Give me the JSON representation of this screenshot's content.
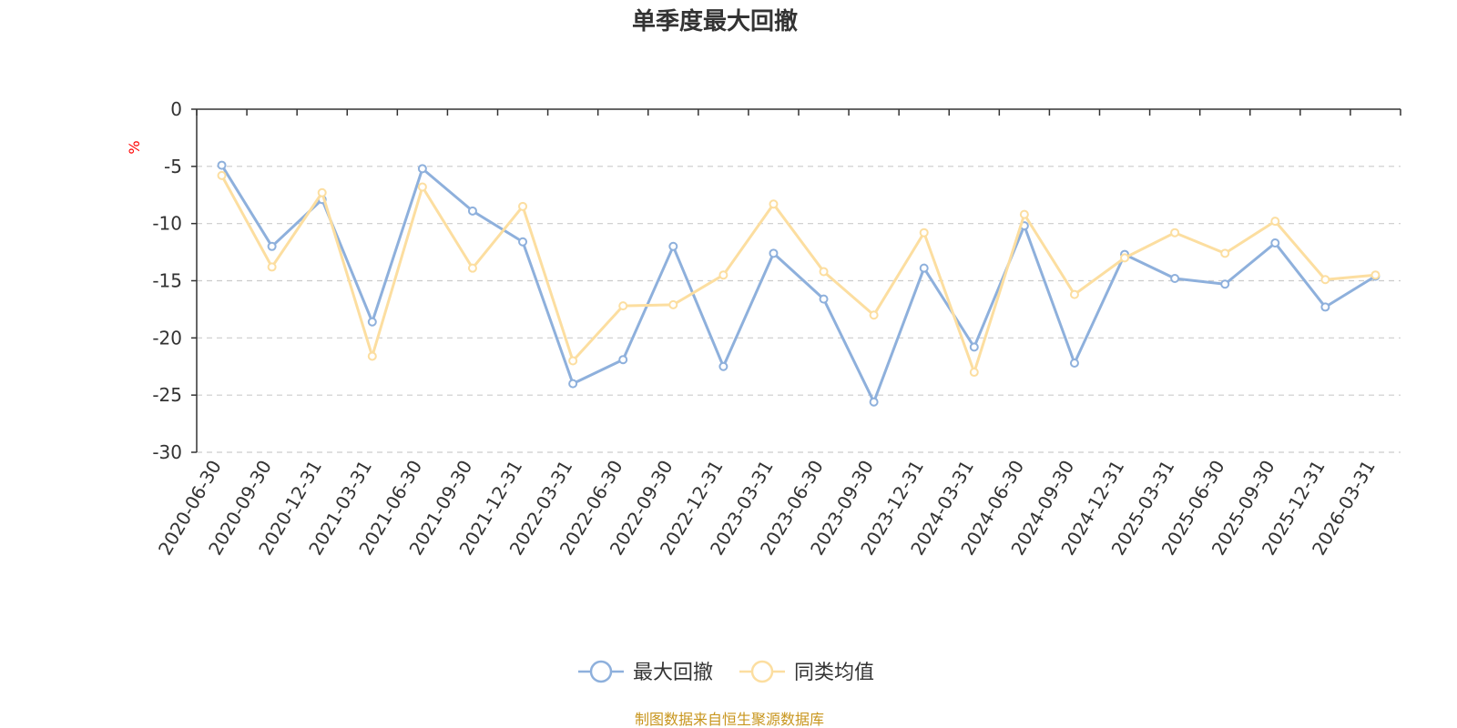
{
  "chart_data": {
    "type": "line",
    "title": "单季度最大回撤",
    "ylabel": "%",
    "xlabel": "",
    "ylim": [
      -30,
      0
    ],
    "yticks": [
      0,
      -5,
      -10,
      -15,
      -20,
      -25,
      -30
    ],
    "grid": true,
    "legend_position": "bottom-center",
    "categories": [
      "2020-06-30",
      "2020-09-30",
      "2020-12-31",
      "2021-03-31",
      "2021-06-30",
      "2021-09-30",
      "2021-12-31",
      "2022-03-31",
      "2022-06-30",
      "2022-09-30",
      "2022-12-31",
      "2023-03-31",
      "2023-06-30",
      "2023-09-30",
      "2023-12-31",
      "2024-03-31",
      "2024-06-30",
      "2024-09-30",
      "2024-12-31",
      "2025-03-31",
      "2025-06-30",
      "2025-09-30",
      "2025-12-31",
      "2026-03-31"
    ],
    "series": [
      {
        "name": "最大回撤",
        "color": "#8eb0dc",
        "values": [
          -4.9,
          -12.0,
          -7.9,
          -18.6,
          -5.2,
          -8.9,
          -11.6,
          -24.0,
          -21.9,
          -12.0,
          -22.5,
          -12.6,
          -16.6,
          -25.6,
          -13.9,
          -20.8,
          -10.2,
          -22.2,
          -12.7,
          -14.8,
          -15.3,
          -11.7,
          -17.3,
          -14.6
        ]
      },
      {
        "name": "同类均值",
        "color": "#fcdea0",
        "values": [
          -5.8,
          -13.8,
          -7.3,
          -21.6,
          -6.8,
          -13.9,
          -8.5,
          -22.0,
          -17.2,
          -17.1,
          -14.5,
          -8.3,
          -14.2,
          -18.0,
          -10.8,
          -23.0,
          -9.2,
          -16.2,
          -13.0,
          -10.8,
          -12.6,
          -9.8,
          -14.9,
          -14.5
        ]
      }
    ],
    "source_note": "制图数据来自恒生聚源数据库"
  }
}
